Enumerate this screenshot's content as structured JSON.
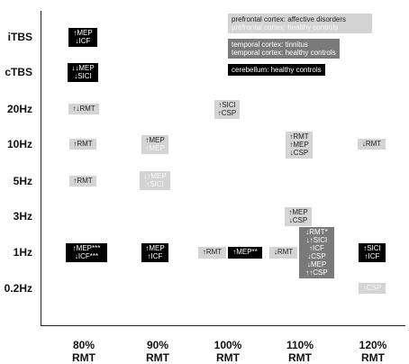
{
  "y_labels": [
    "iTBS",
    "cTBS",
    "20Hz",
    "10Hz",
    "5Hz",
    "3Hz",
    "1Hz",
    "0.2Hz"
  ],
  "x_labels": [
    {
      "pct": "80%",
      "unit": "RMT"
    },
    {
      "pct": "90%",
      "unit": "RMT"
    },
    {
      "pct": "100%",
      "unit": "RMT"
    },
    {
      "pct": "110%",
      "unit": "RMT"
    },
    {
      "pct": "120%",
      "unit": "RMT"
    }
  ],
  "legend": [
    {
      "lines": [
        "prefrontal cortex: affective disorders",
        "prefrontal cortex: healthy controls"
      ],
      "style": "light",
      "color": "#d4d4d4"
    },
    {
      "lines": [
        "temporal cortex: tinnitus",
        "temporal cortex: healthy controls"
      ],
      "style": "dark",
      "color": "#7a7a7a"
    },
    {
      "lines": [
        "cerebellum: healthy controls"
      ],
      "style": "black",
      "color": "#000000"
    }
  ],
  "boxes": [
    {
      "id": "itbs-80",
      "lines": [
        "↑MEP",
        "↓ICF"
      ],
      "style": "black"
    },
    {
      "id": "ctbs-80",
      "lines": [
        "↓↓MEP",
        "↓SICI"
      ],
      "style": "black"
    },
    {
      "id": "20hz-80",
      "lines": [
        "↑↓RMT"
      ],
      "style": "light"
    },
    {
      "id": "10hz-80",
      "lines": [
        "↑RMT"
      ],
      "style": "light"
    },
    {
      "id": "5hz-80",
      "lines": [
        "↑RMT"
      ],
      "style": "light"
    },
    {
      "id": "1hz-80",
      "lines": [
        "↑MEP***",
        "↓ICF***"
      ],
      "style": "black"
    },
    {
      "id": "10hz-90",
      "lines": [
        "↑MEP",
        "↑MEP"
      ],
      "style": "light"
    },
    {
      "id": "5hz-90",
      "lines": [
        "↓↑MEP",
        "↑SICI"
      ],
      "style": "light-faded"
    },
    {
      "id": "1hz-90",
      "lines": [
        "↑MEP",
        "↑ICF"
      ],
      "style": "black"
    },
    {
      "id": "20hz-100",
      "lines": [
        "↑SICI",
        "↑CSP"
      ],
      "style": "light"
    },
    {
      "id": "1hz-100a",
      "lines": [
        "↑RMT"
      ],
      "style": "light"
    },
    {
      "id": "1hz-100b",
      "lines": [
        "↑MEP**"
      ],
      "style": "black"
    },
    {
      "id": "10hz-110",
      "lines": [
        "↑RMT",
        "↑MEP",
        "↓CSP"
      ],
      "style": "light"
    },
    {
      "id": "3hz-110",
      "lines": [
        "↑MEP",
        "↓CSP"
      ],
      "style": "light"
    },
    {
      "id": "1hz-110a",
      "lines": [
        "↓RMT"
      ],
      "style": "light"
    },
    {
      "id": "1hz-110b",
      "lines": [
        "↓RMT*",
        "↓↑SICI",
        "↑ICF",
        "↓CSP",
        "↓MEP",
        "↑↑CSP"
      ],
      "style": "dark"
    },
    {
      "id": "10hz-120",
      "lines": [
        "↓RMT"
      ],
      "style": "light"
    },
    {
      "id": "1hz-120",
      "lines": [
        "↑SICI",
        "↑ICF"
      ],
      "style": "black"
    },
    {
      "id": "02hz-120",
      "lines": [
        "↑CSP"
      ],
      "style": "light-faded"
    }
  ]
}
